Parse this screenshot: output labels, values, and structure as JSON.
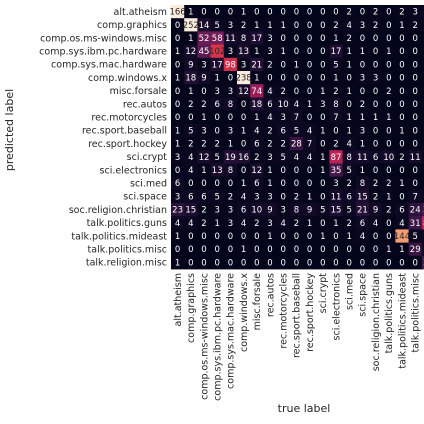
{
  "chart_data": {
    "type": "heatmap",
    "title": "",
    "xlabel": "true label",
    "ylabel": "predicted label",
    "colorbar": false,
    "colormap": "rocket",
    "vmax": 166,
    "x_categories": [
      "alt.atheism",
      "comp.graphics",
      "comp.os.ms-windows.misc",
      "comp.sys.ibm.pc.hardware",
      "comp.sys.mac.hardware",
      "comp.windows.x",
      "misc.forsale",
      "rec.autos",
      "rec.motorcycles",
      "rec.sport.baseball",
      "rec.sport.hockey",
      "sci.crypt",
      "sci.electronics",
      "sci.med",
      "sci.space",
      "soc.religion.christian",
      "talk.politics.guns",
      "talk.politics.mideast",
      "talk.politics.misc",
      "talk.religion.misc"
    ],
    "y_categories": [
      "alt.atheism",
      "comp.graphics",
      "comp.os.ms-windows.misc",
      "comp.sys.ibm.pc.hardware",
      "comp.sys.mac.hardware",
      "comp.windows.x",
      "misc.forsale",
      "rec.autos",
      "rec.motorcycles",
      "rec.sport.baseball",
      "rec.sport.hockey",
      "sci.crypt",
      "sci.electronics",
      "sci.med",
      "sci.space",
      "soc.religion.christian",
      "talk.politics.guns",
      "talk.politics.mideast",
      "talk.politics.misc",
      "talk.religion.misc"
    ],
    "values": [
      [
        166,
        1,
        0,
        0,
        0,
        1,
        0,
        0,
        0,
        0,
        0,
        0,
        0,
        2,
        0,
        2,
        0,
        2,
        3,
        3
      ],
      [
        0,
        252,
        14,
        5,
        3,
        2,
        1,
        1,
        1,
        0,
        0,
        0,
        2,
        4,
        3,
        2,
        0,
        1,
        2,
        2
      ],
      [
        0,
        1,
        52,
        58,
        11,
        8,
        17,
        3,
        0,
        0,
        0,
        0,
        1,
        2,
        0,
        0,
        0,
        0,
        0,
        0
      ],
      [
        1,
        12,
        45,
        102,
        3,
        13,
        1,
        3,
        1,
        0,
        0,
        0,
        17,
        1,
        1,
        0,
        1,
        0,
        0,
        0
      ],
      [
        0,
        9,
        3,
        17,
        98,
        3,
        21,
        2,
        0,
        1,
        0,
        0,
        5,
        1,
        0,
        0,
        0,
        0,
        0,
        0
      ],
      [
        1,
        18,
        9,
        1,
        0,
        238,
        1,
        0,
        0,
        0,
        0,
        0,
        1,
        0,
        3,
        3,
        0,
        0,
        0,
        0
      ],
      [
        0,
        1,
        0,
        3,
        3,
        12,
        74,
        4,
        2,
        0,
        0,
        1,
        2,
        1,
        0,
        0,
        2,
        0,
        0,
        0
      ],
      [
        0,
        2,
        2,
        6,
        8,
        0,
        18,
        6,
        10,
        4,
        1,
        3,
        8,
        0,
        2,
        0,
        0,
        0,
        0,
        0
      ],
      [
        0,
        0,
        1,
        0,
        0,
        0,
        1,
        4,
        3,
        7,
        0,
        0,
        7,
        1,
        1,
        1,
        1,
        0,
        0,
        0
      ],
      [
        1,
        5,
        3,
        0,
        3,
        1,
        4,
        2,
        6,
        5,
        4,
        1,
        0,
        1,
        3,
        0,
        0,
        1,
        0,
        0
      ],
      [
        1,
        2,
        2,
        2,
        1,
        0,
        6,
        2,
        2,
        28,
        7,
        0,
        2,
        4,
        1,
        0,
        0,
        0,
        0,
        0
      ],
      [
        3,
        4,
        12,
        5,
        19,
        16,
        2,
        3,
        5,
        4,
        4,
        1,
        87,
        8,
        11,
        6,
        10,
        2,
        11,
        3
      ],
      [
        0,
        4,
        1,
        13,
        8,
        0,
        12,
        1,
        0,
        0,
        0,
        1,
        35,
        5,
        1,
        0,
        0,
        0,
        0,
        0
      ],
      [
        6,
        0,
        0,
        0,
        0,
        1,
        6,
        1,
        0,
        0,
        0,
        0,
        3,
        2,
        8,
        2,
        2,
        1,
        0,
        0
      ],
      [
        3,
        6,
        6,
        5,
        2,
        4,
        3,
        3,
        0,
        2,
        1,
        0,
        11,
        6,
        15,
        2,
        1,
        0,
        7,
        4
      ],
      [
        23,
        15,
        2,
        3,
        3,
        6,
        10,
        9,
        3,
        8,
        9,
        5,
        15,
        5,
        21,
        9,
        2,
        6,
        24,
        35
      ],
      [
        4,
        4,
        2,
        1,
        3,
        4,
        2,
        3,
        4,
        2,
        1,
        0,
        1,
        2,
        6,
        4,
        0,
        4,
        31,
        89
      ],
      [
        1,
        0,
        0,
        0,
        0,
        0,
        0,
        1,
        0,
        0,
        0,
        1,
        0,
        1,
        4,
        0,
        0,
        144,
        5,
        5
      ],
      [
        0,
        0,
        0,
        0,
        0,
        1,
        0,
        0,
        0,
        0,
        0,
        0,
        0,
        0,
        0,
        0,
        1,
        1,
        29,
        5
      ],
      [
        1,
        0,
        0,
        0,
        0,
        0,
        0,
        0,
        0,
        0,
        0,
        0,
        0,
        0,
        0,
        0,
        0,
        0,
        0,
        35
      ]
    ]
  }
}
